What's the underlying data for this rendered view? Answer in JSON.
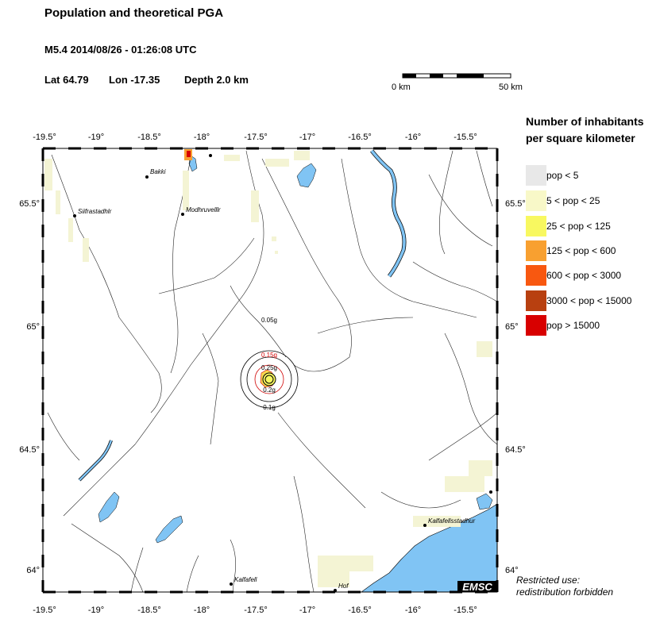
{
  "header": {
    "title": "Population and theoretical PGA",
    "event": "M5.4  2014/08/26 - 01:26:08 UTC",
    "lat": "Lat 64.79",
    "lon": "Lon -17.35",
    "depth": "Depth  2.0 km"
  },
  "scalebar": {
    "left_label": "0 km",
    "right_label": "50 km"
  },
  "axes": {
    "lon_labels": [
      "-19.5°",
      "-19°",
      "-18.5°",
      "-18°",
      "-17.5°",
      "-17°",
      "-16.5°",
      "-16°",
      "-15.5°"
    ],
    "lat_labels": [
      "65.5°",
      "65°",
      "64.5°",
      "64°"
    ]
  },
  "legend": {
    "title_line1": "Number of inhabitants",
    "title_line2": "per square kilometer",
    "items": [
      {
        "label": "pop < 5",
        "color": "#e8e8e8"
      },
      {
        "label": "5 < pop < 25",
        "color": "#f8f8c8"
      },
      {
        "label": "25 < pop < 125",
        "color": "#f8f860"
      },
      {
        "label": "125 < pop < 600",
        "color": "#f8a030"
      },
      {
        "label": "600 < pop < 3000",
        "color": "#f85810"
      },
      {
        "label": "3000 < pop < 15000",
        "color": "#b84010"
      },
      {
        "label": "pop > 15000",
        "color": "#d80000"
      }
    ]
  },
  "places": [
    "Bakki",
    "Siifrastadhlr",
    "Modhruvelllr",
    "Kalfafell",
    "Hof",
    "Kalfafellsstadhur"
  ],
  "pga_labels": [
    "0.05g",
    "0.15g",
    "0.25g",
    "0.2g",
    "0.1g"
  ],
  "restricted": {
    "line1": "Restricted use:",
    "line2": "redistribution forbidden"
  },
  "logo": "EMSC",
  "colors": {
    "water": "#80c4f4",
    "pop_low": "#f4f4d4"
  }
}
